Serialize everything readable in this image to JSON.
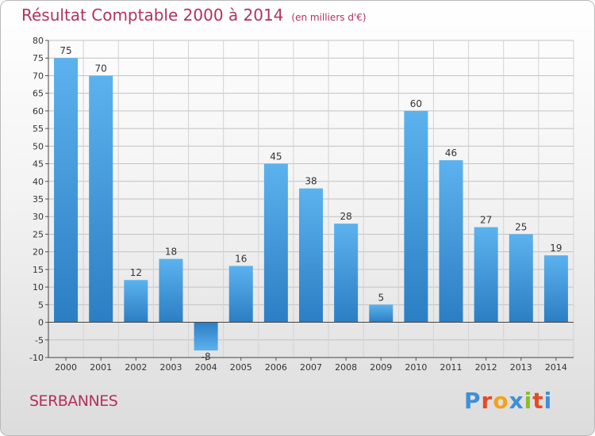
{
  "title": {
    "main": "Résultat Comptable 2000 à 2014",
    "unit": "(en milliers d'€)"
  },
  "commune": "SERBANNES",
  "logo": {
    "text": "Proxiti",
    "letters": [
      {
        "ch": "P",
        "color": "#3f8fd8"
      },
      {
        "ch": "r",
        "color": "#e54b23"
      },
      {
        "ch": "o",
        "color": "#f2a21b"
      },
      {
        "ch": "x",
        "color": "#3f8fd8"
      },
      {
        "ch": "i",
        "color": "#8cbc2c"
      },
      {
        "ch": "t",
        "color": "#e54b23"
      },
      {
        "ch": "i",
        "color": "#3f8fd8"
      }
    ]
  },
  "colors": {
    "title": "#b1325f",
    "bar_light": "#5ab0ec",
    "bar_dark": "#2c7fc4",
    "axis": "#444444",
    "grid": "#bdbdbd"
  },
  "chart_data": {
    "type": "bar",
    "categories": [
      "2000",
      "2001",
      "2002",
      "2003",
      "2004",
      "2005",
      "2006",
      "2007",
      "2008",
      "2009",
      "2010",
      "2011",
      "2012",
      "2013",
      "2014"
    ],
    "values": [
      75,
      70,
      12,
      18,
      -8,
      16,
      45,
      38,
      28,
      5,
      60,
      46,
      27,
      25,
      19
    ],
    "ylim": [
      -10,
      80
    ],
    "yticks": [
      -10,
      -5,
      0,
      5,
      10,
      15,
      20,
      25,
      30,
      35,
      40,
      45,
      50,
      55,
      60,
      65,
      70,
      75,
      80
    ],
    "grid": true
  }
}
